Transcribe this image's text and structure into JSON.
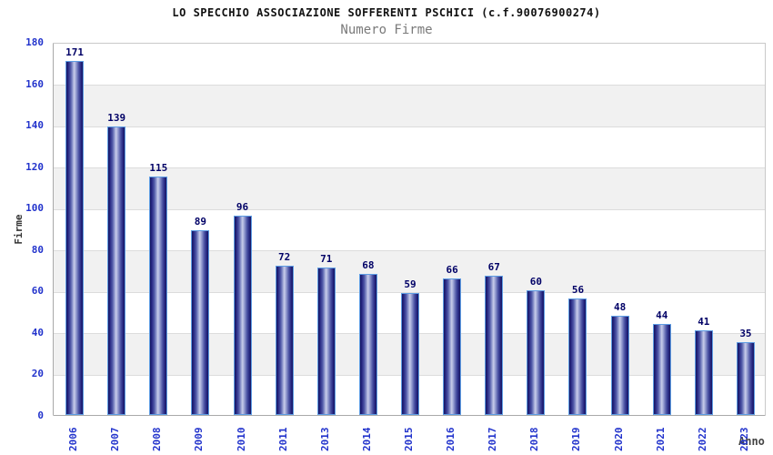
{
  "header": {
    "title": "LO SPECCHIO ASSOCIAZIONE SOFFERENTI PSCHICI (c.f.90076900274)",
    "subtitle": "Numero Firme"
  },
  "chart_data": {
    "type": "bar",
    "title": "LO SPECCHIO ASSOCIAZIONE SOFFERENTI PSCHICI (c.f.90076900274)",
    "subtitle": "Numero Firme",
    "categories": [
      "2006",
      "2007",
      "2008",
      "2009",
      "2010",
      "2011",
      "2013",
      "2014",
      "2015",
      "2016",
      "2017",
      "2018",
      "2019",
      "2020",
      "2021",
      "2022",
      "2023"
    ],
    "values": [
      171,
      139,
      115,
      89,
      96,
      72,
      71,
      68,
      59,
      66,
      67,
      60,
      56,
      48,
      44,
      41,
      35
    ],
    "xlabel": "Anno",
    "ylabel": "Firme",
    "ylim": [
      0,
      180
    ],
    "yticks": [
      0,
      20,
      40,
      60,
      80,
      100,
      120,
      140,
      160,
      180
    ],
    "grid": true,
    "legend_position": "none",
    "bands_alternating": true,
    "colors": {
      "bar_edge": "#5e9de4",
      "bar_dark": "#191970",
      "bar_highlight": "#c9cdea",
      "tick_label": "#2233cc",
      "value_label": "#000066",
      "title": "#111111",
      "subtitle": "#7a7a7a",
      "axis_title": "#333333",
      "band": "#f1f1f1",
      "gridline": "#dcdcdc"
    }
  }
}
